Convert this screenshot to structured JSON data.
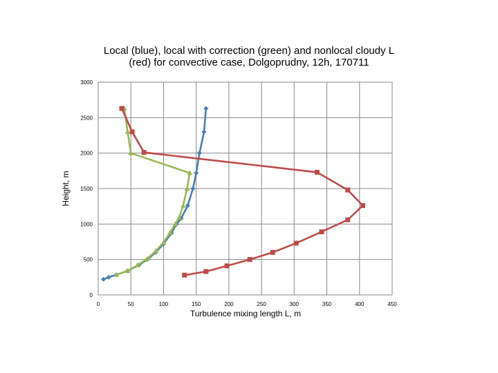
{
  "chart_data": {
    "type": "line",
    "title_lines": [
      "Local (blue), local with correction (green) and nonlocal cloudy L",
      "(red) for convective case, Dolgoprudny, 12h, 170711"
    ],
    "xlabel": "Turbulence mixing length L, m",
    "ylabel": "Height, m",
    "xlim": [
      0,
      450
    ],
    "ylim": [
      0,
      3000
    ],
    "xticks": [
      0,
      50,
      100,
      150,
      200,
      250,
      300,
      350,
      400,
      450
    ],
    "yticks": [
      0,
      500,
      1000,
      1500,
      2000,
      2500,
      3000
    ],
    "grid": true,
    "series": [
      {
        "name": "local",
        "color": "#4a7ebb",
        "marker": "diamond",
        "points": [
          [
            8,
            220
          ],
          [
            16,
            250
          ],
          [
            28,
            285
          ],
          [
            45,
            340
          ],
          [
            62,
            420
          ],
          [
            75,
            500
          ],
          [
            88,
            600
          ],
          [
            100,
            720
          ],
          [
            112,
            870
          ],
          [
            120,
            1000
          ],
          [
            127,
            1080
          ],
          [
            137,
            1260
          ],
          [
            145,
            1500
          ],
          [
            150,
            1720
          ],
          [
            155,
            2000
          ],
          [
            162,
            2300
          ],
          [
            165,
            2630
          ]
        ]
      },
      {
        "name": "local with correction",
        "color": "#98b954",
        "marker": "triangle",
        "points": [
          [
            28,
            285
          ],
          [
            45,
            340
          ],
          [
            60,
            420
          ],
          [
            75,
            510
          ],
          [
            88,
            620
          ],
          [
            100,
            740
          ],
          [
            110,
            880
          ],
          [
            118,
            1000
          ],
          [
            124,
            1090
          ],
          [
            130,
            1260
          ],
          [
            136,
            1500
          ],
          [
            140,
            1720
          ],
          [
            50,
            2000
          ],
          [
            45,
            2300
          ],
          [
            40,
            2630
          ]
        ]
      },
      {
        "name": "nonlocal cloudy",
        "color": "#be4b48",
        "marker": "square",
        "points": [
          [
            132,
            280
          ],
          [
            165,
            330
          ],
          [
            197,
            410
          ],
          [
            232,
            500
          ],
          [
            267,
            600
          ],
          [
            303,
            730
          ],
          [
            342,
            890
          ],
          [
            382,
            1060
          ],
          [
            405,
            1260
          ],
          [
            382,
            1480
          ],
          [
            335,
            1730
          ],
          [
            70,
            2010
          ],
          [
            52,
            2300
          ],
          [
            36,
            2630
          ]
        ]
      }
    ]
  }
}
